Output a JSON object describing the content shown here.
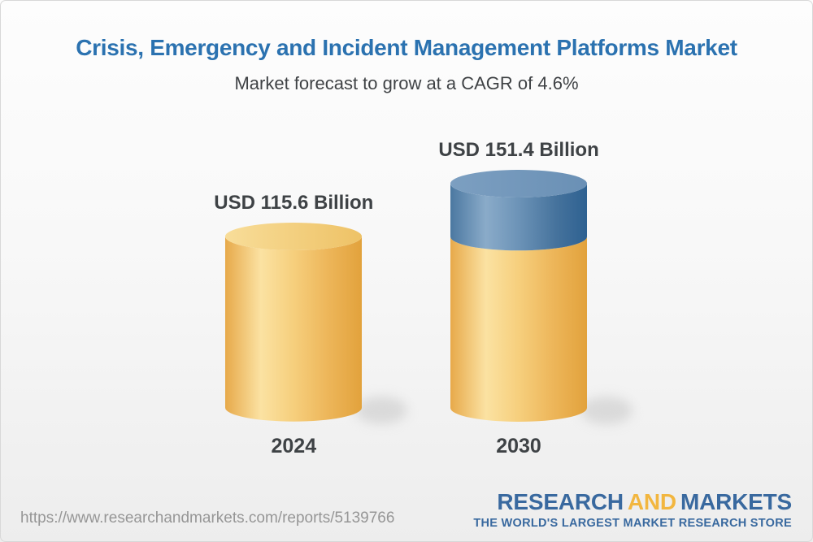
{
  "header": {
    "title": "Crisis, Emergency and Incident Management Platforms Market",
    "subtitle": "Market forecast to grow at a CAGR of 4.6%"
  },
  "chart_data": {
    "type": "bar",
    "subtype": "3d-cylinder",
    "title": "Crisis, Emergency and Incident Management Platforms Market",
    "note": "Market forecast to grow at a CAGR of 4.6%",
    "cagr_percent": 4.6,
    "unit": "USD Billion",
    "categories": [
      "2024",
      "2030"
    ],
    "values": [
      115.6,
      151.4
    ],
    "legend": "none",
    "grid": "off",
    "bars": [
      {
        "category": "2024",
        "value": 115.6,
        "label": "USD 115.6 Billion",
        "segments": [
          {
            "color": "gold",
            "value": 115.6
          }
        ]
      },
      {
        "category": "2030",
        "value": 151.4,
        "label": "USD 151.4 Billion",
        "segments": [
          {
            "color": "blue",
            "value": 35.8
          },
          {
            "color": "gold",
            "value": 115.6
          }
        ]
      }
    ],
    "palette": {
      "gold": {
        "body": [
          [
            "0%",
            "#E7A94A"
          ],
          [
            "26%",
            "#FBE2A2"
          ],
          [
            "50%",
            "#F6CF7D"
          ],
          [
            "75%",
            "#EDB65A"
          ],
          [
            "100%",
            "#E2A23C"
          ]
        ],
        "top": [
          [
            "0%",
            "#F8DD99"
          ],
          [
            "100%",
            "#EEC266"
          ]
        ]
      },
      "blue": {
        "body": [
          [
            "0%",
            "#4B78A1"
          ],
          [
            "26%",
            "#8AABC9"
          ],
          [
            "50%",
            "#6C93B7"
          ],
          [
            "78%",
            "#45729C"
          ],
          [
            "100%",
            "#2E6191"
          ]
        ],
        "top": [
          [
            "0%",
            "#7C9FC1"
          ],
          [
            "100%",
            "#6A90B5"
          ]
        ]
      }
    }
  },
  "footer": {
    "url": "https://www.researchandmarkets.com/reports/5139766",
    "logo": {
      "part1": "RESEARCH",
      "part2": "AND",
      "part3": "MARKETS",
      "tagline": "THE WORLD'S LARGEST MARKET RESEARCH STORE",
      "blue": "#39699f",
      "gold": "#f2b63f"
    }
  }
}
